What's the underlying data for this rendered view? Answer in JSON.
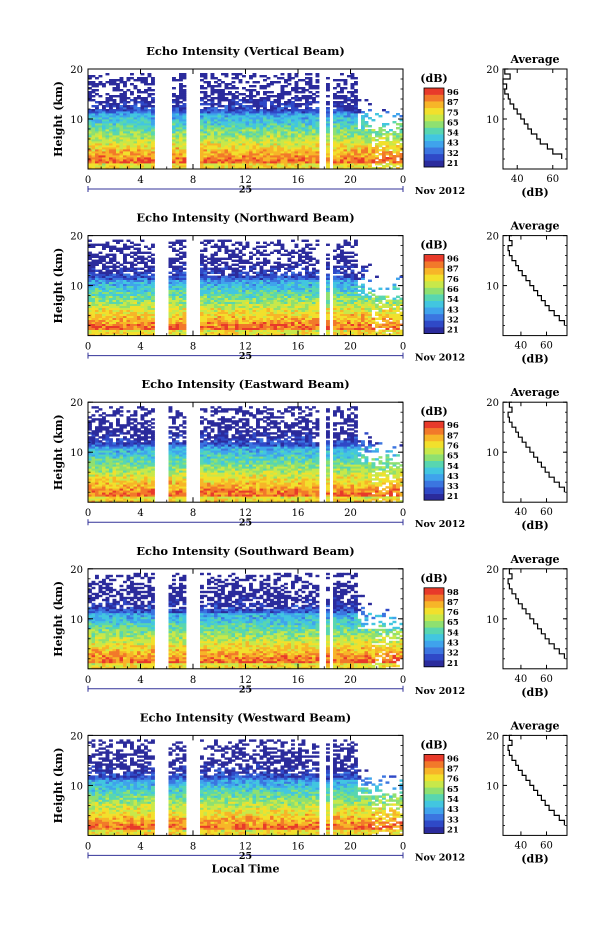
{
  "colors": {
    "background": "#ffffff",
    "axis": "#000000",
    "colorbar": [
      "#2b2b9c",
      "#2f49c7",
      "#3b75e0",
      "#3fa3ec",
      "#42c6e0",
      "#58d6b0",
      "#8fe070",
      "#c8e84a",
      "#f2e02c",
      "#f7b528",
      "#f2792a",
      "#e83a2a"
    ]
  },
  "chart_data": [
    {
      "type": "heatmap",
      "title": "Echo Intensity (Vertical Beam)",
      "ylabel": "Height (km)",
      "xlim": [
        0,
        24
      ],
      "ylim": [
        0,
        20
      ],
      "x_ticks": [
        "0",
        "4",
        "8",
        "12",
        "16",
        "20",
        "0"
      ],
      "y_ticks": [
        "10",
        "20"
      ],
      "date_label": "25",
      "month_label": "Nov 2012",
      "colorbar": {
        "unit": "(dB)",
        "ticks": [
          "96",
          "87",
          "75",
          "65",
          "54",
          "43",
          "32",
          "21"
        ]
      },
      "gaps_hours": [
        [
          5.0,
          6.3
        ],
        [
          7.5,
          8.5
        ],
        [
          17.7,
          18.0
        ],
        [
          18.3,
          18.6
        ]
      ],
      "profile": {
        "title": "Average",
        "xlabel": "(dB)",
        "x_ticks": [
          "40",
          "60"
        ],
        "y_ticks": [
          "10",
          "20"
        ],
        "xlim": [
          32,
          68
        ],
        "height_km": [
          2,
          3,
          4,
          5,
          6,
          7,
          8,
          9,
          10,
          11,
          12,
          13,
          14,
          15,
          16,
          17,
          18,
          19,
          20
        ],
        "avg_db": [
          65,
          60,
          57,
          53,
          51,
          48,
          46,
          44,
          42,
          40,
          38,
          36,
          35,
          33,
          34,
          32,
          36,
          33,
          35
        ]
      }
    },
    {
      "type": "heatmap",
      "title": "Echo Intensity (Northward Beam)",
      "ylabel": "Height (km)",
      "xlim": [
        0,
        24
      ],
      "ylim": [
        0,
        20
      ],
      "x_ticks": [
        "0",
        "4",
        "8",
        "12",
        "16",
        "20",
        "0"
      ],
      "y_ticks": [
        "10",
        "20"
      ],
      "date_label": "25",
      "month_label": "Nov 2012",
      "colorbar": {
        "unit": "(dB)",
        "ticks": [
          "96",
          "87",
          "76",
          "66",
          "54",
          "43",
          "32",
          "21"
        ]
      },
      "gaps_hours": [
        [
          5.0,
          6.2
        ],
        [
          7.5,
          8.5
        ],
        [
          17.7,
          18.0
        ],
        [
          18.3,
          18.6
        ]
      ],
      "profile": {
        "title": "Average",
        "xlabel": "(dB)",
        "x_ticks": [
          "40",
          "60"
        ],
        "y_ticks": [
          "10",
          "20"
        ],
        "xlim": [
          26,
          76
        ],
        "height_km": [
          2,
          3,
          4,
          5,
          6,
          7,
          8,
          9,
          10,
          11,
          12,
          13,
          14,
          15,
          16,
          17,
          18,
          19,
          20
        ],
        "avg_db": [
          74,
          70,
          66,
          62,
          59,
          56,
          53,
          50,
          47,
          44,
          41,
          38,
          36,
          33,
          31,
          30,
          33,
          31,
          33
        ]
      }
    },
    {
      "type": "heatmap",
      "title": "Echo Intensity (Eastward Beam)",
      "ylabel": "Height (km)",
      "xlim": [
        0,
        24
      ],
      "ylim": [
        0,
        20
      ],
      "x_ticks": [
        "0",
        "4",
        "8",
        "12",
        "16",
        "20",
        "0"
      ],
      "y_ticks": [
        "10",
        "20"
      ],
      "date_label": "25",
      "month_label": "Nov 2012",
      "colorbar": {
        "unit": "(dB)",
        "ticks": [
          "96",
          "87",
          "76",
          "65",
          "54",
          "43",
          "33",
          "21"
        ]
      },
      "gaps_hours": [
        [
          5.0,
          6.2
        ],
        [
          7.5,
          8.5
        ],
        [
          17.7,
          18.0
        ],
        [
          18.3,
          18.6
        ]
      ],
      "profile": {
        "title": "Average",
        "xlabel": "(dB)",
        "x_ticks": [
          "40",
          "60"
        ],
        "y_ticks": [
          "10",
          "20"
        ],
        "xlim": [
          26,
          76
        ],
        "height_km": [
          2,
          3,
          4,
          5,
          6,
          7,
          8,
          9,
          10,
          11,
          12,
          13,
          14,
          15,
          16,
          17,
          18,
          19,
          20
        ],
        "avg_db": [
          74,
          70,
          66,
          62,
          59,
          56,
          53,
          50,
          47,
          44,
          41,
          38,
          36,
          33,
          31,
          30,
          33,
          31,
          33
        ]
      }
    },
    {
      "type": "heatmap",
      "title": "Echo Intensity (Southward Beam)",
      "ylabel": "Height (km)",
      "xlim": [
        0,
        24
      ],
      "ylim": [
        0,
        20
      ],
      "x_ticks": [
        "0",
        "4",
        "8",
        "12",
        "16",
        "20",
        "0"
      ],
      "y_ticks": [
        "10",
        "20"
      ],
      "date_label": "25",
      "month_label": "Nov 2012",
      "colorbar": {
        "unit": "(dB)",
        "ticks": [
          "98",
          "87",
          "76",
          "65",
          "54",
          "43",
          "32",
          "21"
        ]
      },
      "gaps_hours": [
        [
          5.0,
          6.2
        ],
        [
          7.5,
          8.5
        ],
        [
          17.7,
          18.0
        ],
        [
          18.3,
          18.6
        ]
      ],
      "profile": {
        "title": "Average",
        "xlabel": "(dB)",
        "x_ticks": [
          "40",
          "60"
        ],
        "y_ticks": [
          "10",
          "20"
        ],
        "xlim": [
          26,
          76
        ],
        "height_km": [
          2,
          3,
          4,
          5,
          6,
          7,
          8,
          9,
          10,
          11,
          12,
          13,
          14,
          15,
          16,
          17,
          18,
          19,
          20
        ],
        "avg_db": [
          74,
          70,
          66,
          62,
          59,
          56,
          53,
          50,
          47,
          44,
          41,
          38,
          36,
          33,
          31,
          30,
          33,
          31,
          33
        ]
      }
    },
    {
      "type": "heatmap",
      "title": "Echo Intensity (Westward Beam)",
      "ylabel": "Height (km)",
      "xlim": [
        0,
        24
      ],
      "ylim": [
        0,
        20
      ],
      "x_ticks": [
        "0",
        "4",
        "8",
        "12",
        "16",
        "20",
        "0"
      ],
      "y_ticks": [
        "10",
        "20"
      ],
      "date_label": "25",
      "month_label": "Nov 2012",
      "xlabel": "Local Time",
      "colorbar": {
        "unit": "(dB)",
        "ticks": [
          "96",
          "87",
          "76",
          "65",
          "54",
          "43",
          "33",
          "21"
        ]
      },
      "gaps_hours": [
        [
          5.0,
          6.2
        ],
        [
          7.5,
          8.5
        ],
        [
          17.7,
          18.0
        ],
        [
          18.3,
          18.6
        ]
      ],
      "profile": {
        "title": "Average",
        "xlabel": "(dB)",
        "x_ticks": [
          "40",
          "60"
        ],
        "y_ticks": [
          "10",
          "20"
        ],
        "xlim": [
          26,
          76
        ],
        "height_km": [
          2,
          3,
          4,
          5,
          6,
          7,
          8,
          9,
          10,
          11,
          12,
          13,
          14,
          15,
          16,
          17,
          18,
          19,
          20
        ],
        "avg_db": [
          74,
          70,
          66,
          62,
          59,
          56,
          53,
          50,
          47,
          44,
          41,
          38,
          36,
          33,
          31,
          30,
          33,
          31,
          33
        ]
      }
    }
  ]
}
